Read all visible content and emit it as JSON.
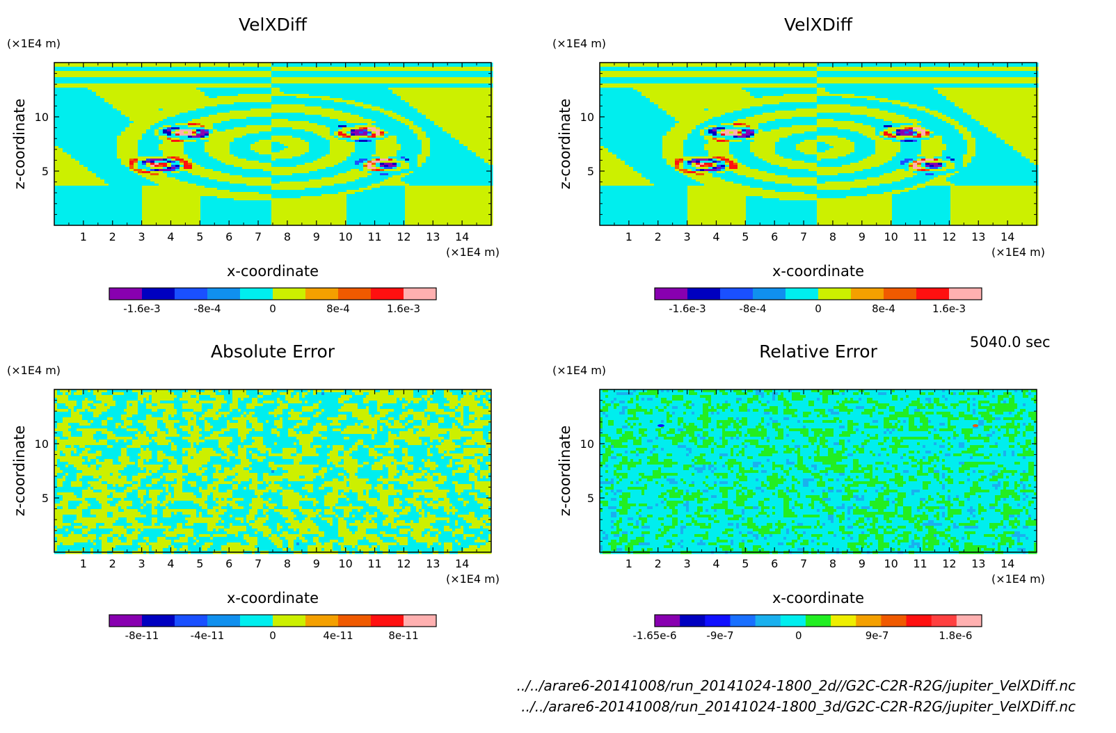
{
  "time_label": "5040.0 sec",
  "files": [
    "../../arare6-20141008/run_20141024-1800_2d//G2C-C2R-R2G/jupiter_VelXDiff.nc",
    "../../arare6-20141008/run_20141024-1800_3d/G2C-C2R-R2G/jupiter_VelXDiff.nc"
  ],
  "chart_data": [
    {
      "type": "heatmap",
      "title": "VelXDiff",
      "xlabel": "x-coordinate",
      "ylabel": "z-coordinate",
      "x_unit": "(×1E4 m)",
      "y_unit": "(×1E4 m)",
      "xlim": [
        0,
        15
      ],
      "ylim": [
        0,
        15
      ],
      "x_ticks": [
        "1",
        "2",
        "3",
        "4",
        "5",
        "6",
        "7",
        "8",
        "9",
        "10",
        "11",
        "12",
        "13",
        "14"
      ],
      "y_ticks": [
        "5",
        "10"
      ],
      "pattern": "vortex",
      "colorbar": {
        "colors": [
          "#8800b0",
          "#0000c0",
          "#1a50ff",
          "#1090ee",
          "#00eeee",
          "#ccf000",
          "#f4a000",
          "#f05a00",
          "#ff1010",
          "#ffb0b0"
        ],
        "tick_labels": [
          "-1.6e-3",
          "-8e-4",
          "0",
          "8e-4",
          "1.6e-3"
        ],
        "tick_values": [
          -0.0016,
          -0.0008,
          0,
          0.0008,
          0.0016
        ],
        "range": [
          -0.002,
          0.002
        ]
      }
    },
    {
      "type": "heatmap",
      "title": "VelXDiff",
      "xlabel": "x-coordinate",
      "ylabel": "z-coordinate",
      "x_unit": "(×1E4 m)",
      "y_unit": "(×1E4 m)",
      "xlim": [
        0,
        15
      ],
      "ylim": [
        0,
        15
      ],
      "x_ticks": [
        "1",
        "2",
        "3",
        "4",
        "5",
        "6",
        "7",
        "8",
        "9",
        "10",
        "11",
        "12",
        "13",
        "14"
      ],
      "y_ticks": [
        "5",
        "10"
      ],
      "pattern": "vortex",
      "colorbar": {
        "colors": [
          "#8800b0",
          "#0000c0",
          "#1a50ff",
          "#1090ee",
          "#00eeee",
          "#ccf000",
          "#f4a000",
          "#f05a00",
          "#ff1010",
          "#ffb0b0"
        ],
        "tick_labels": [
          "-1.6e-3",
          "-8e-4",
          "0",
          "8e-4",
          "1.6e-3"
        ],
        "tick_values": [
          -0.0016,
          -0.0008,
          0,
          0.0008,
          0.0016
        ],
        "range": [
          -0.002,
          0.002
        ]
      }
    },
    {
      "type": "heatmap",
      "title": "Absolute Error",
      "xlabel": "x-coordinate",
      "ylabel": "z-coordinate",
      "x_unit": "(×1E4 m)",
      "y_unit": "(×1E4 m)",
      "xlim": [
        0,
        15
      ],
      "ylim": [
        0,
        15
      ],
      "x_ticks": [
        "1",
        "2",
        "3",
        "4",
        "5",
        "6",
        "7",
        "8",
        "9",
        "10",
        "11",
        "12",
        "13",
        "14"
      ],
      "y_ticks": [
        "5",
        "10"
      ],
      "pattern": "noise",
      "colorbar": {
        "colors": [
          "#8800b0",
          "#0000c0",
          "#1a50ff",
          "#1090ee",
          "#00eeee",
          "#ccf000",
          "#f4a000",
          "#f05a00",
          "#ff1010",
          "#ffb0b0"
        ],
        "tick_labels": [
          "-8e-11",
          "-4e-11",
          "0",
          "4e-11",
          "8e-11"
        ],
        "tick_values": [
          -8e-11,
          -4e-11,
          0,
          4e-11,
          8e-11
        ],
        "range": [
          -1e-10,
          1e-10
        ]
      }
    },
    {
      "type": "heatmap",
      "title": "Relative Error",
      "xlabel": "x-coordinate",
      "ylabel": "z-coordinate",
      "x_unit": "(×1E4 m)",
      "y_unit": "(×1E4 m)",
      "xlim": [
        0,
        15
      ],
      "ylim": [
        0,
        15
      ],
      "x_ticks": [
        "1",
        "2",
        "3",
        "4",
        "5",
        "6",
        "7",
        "8",
        "9",
        "10",
        "11",
        "12",
        "13",
        "14"
      ],
      "y_ticks": [
        "5",
        "10"
      ],
      "pattern": "relnoise",
      "colorbar": {
        "colors": [
          "#8800b0",
          "#0000c0",
          "#1010ff",
          "#1a70ff",
          "#1ab0ee",
          "#00eeee",
          "#22ee22",
          "#eeee00",
          "#f4a000",
          "#f05a00",
          "#ff1010",
          "#ff4040",
          "#ffb0b0"
        ],
        "tick_labels": [
          "-1.65e-6",
          "-9e-7",
          "0",
          "9e-7",
          "1.8e-6"
        ],
        "tick_values": [
          -1.65e-06,
          -9e-07,
          0,
          9e-07,
          1.8e-06
        ],
        "range": [
          -1.65e-06,
          2.1e-06
        ]
      }
    }
  ]
}
